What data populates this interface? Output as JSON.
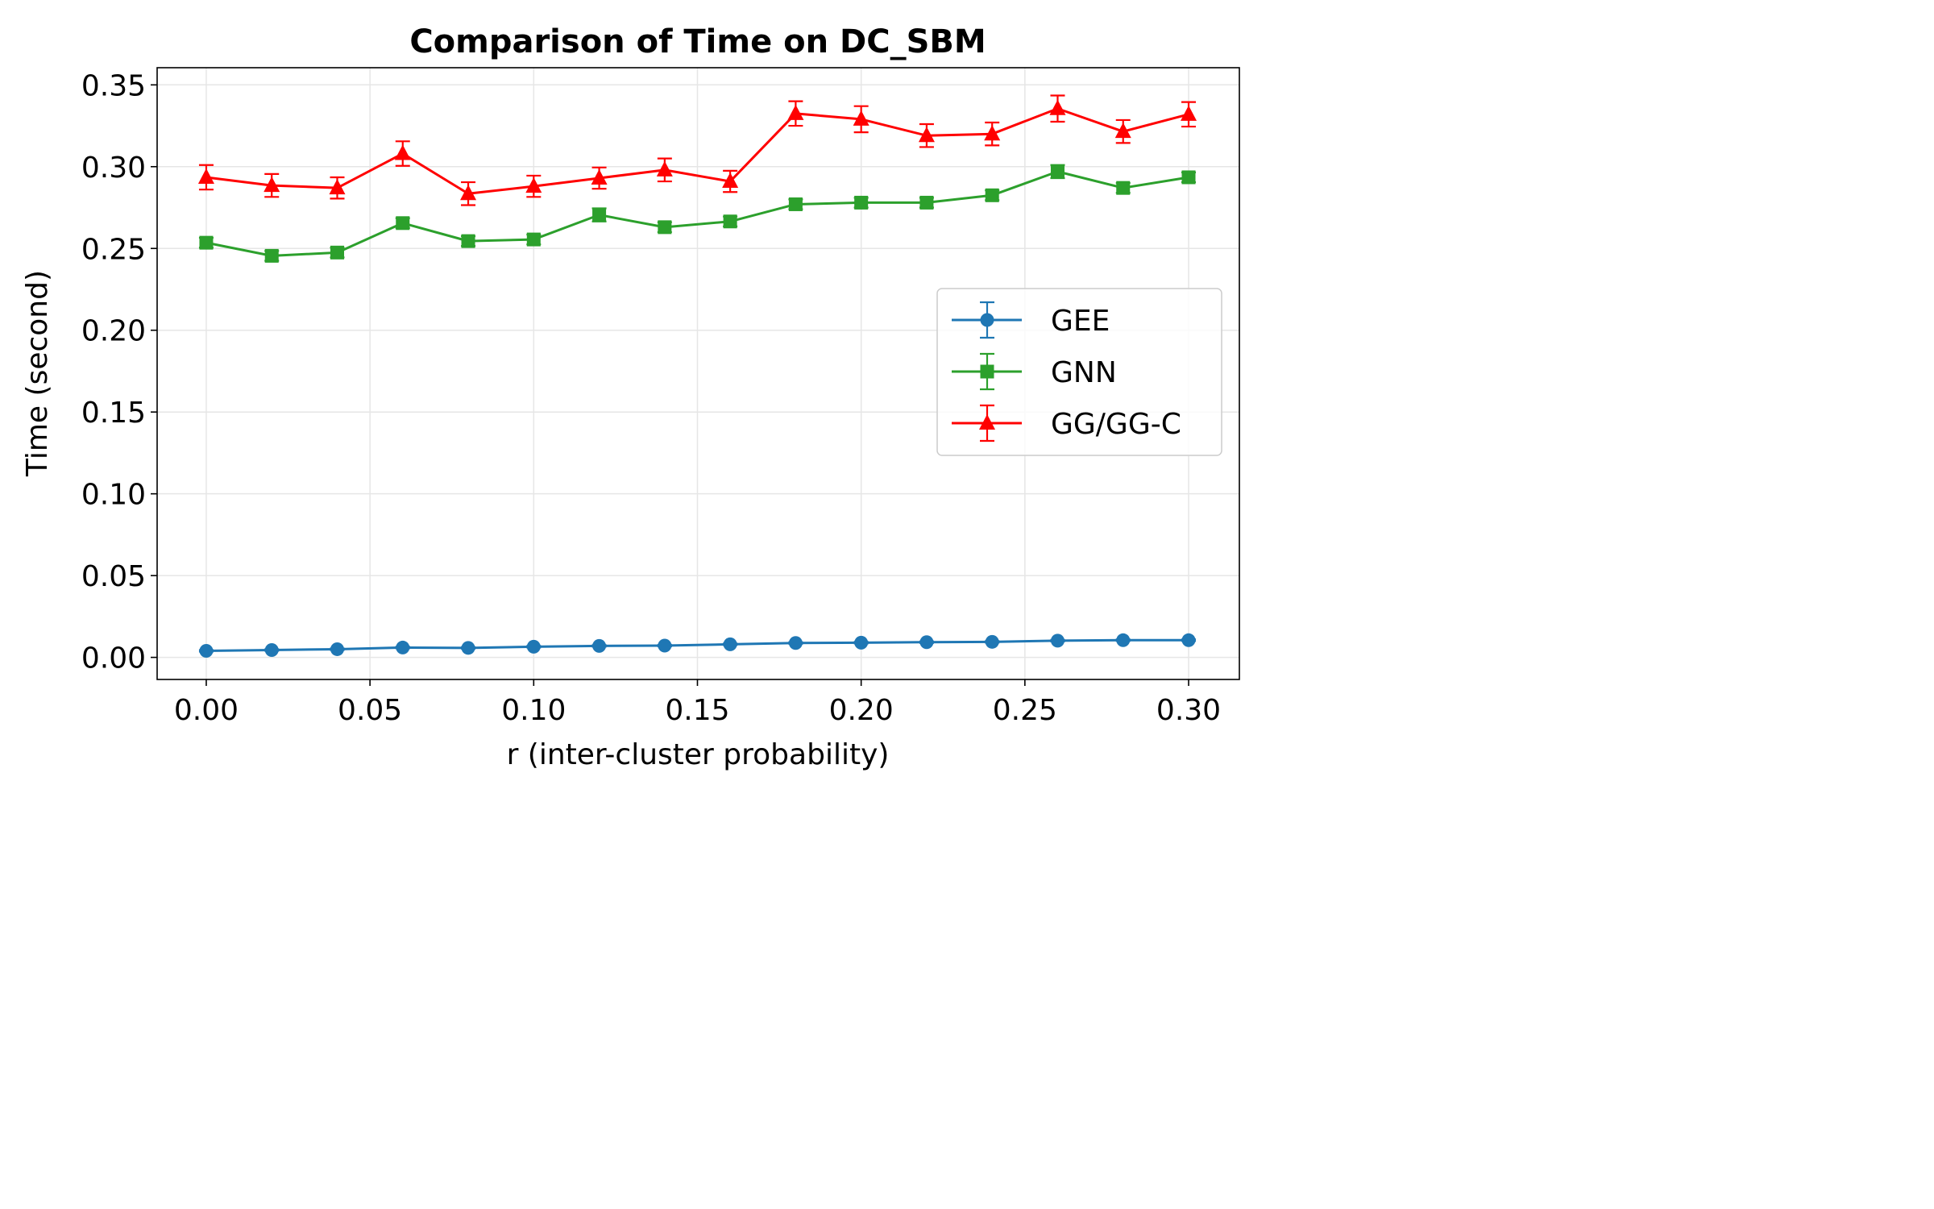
{
  "chart_data": {
    "type": "line",
    "title": "Comparison of Time on DC_SBM",
    "xlabel": "r (inter-cluster probability)",
    "ylabel": "Time (second)",
    "xlim": [
      -0.015,
      0.3155
    ],
    "ylim": [
      -0.0135,
      0.3605
    ],
    "x_ticks": [
      "0.00",
      "0.05",
      "0.10",
      "0.15",
      "0.20",
      "0.25",
      "0.30"
    ],
    "y_ticks": [
      "0.00",
      "0.05",
      "0.10",
      "0.15",
      "0.20",
      "0.25",
      "0.30",
      "0.35"
    ],
    "grid": true,
    "legend_position": "center-right",
    "x": [
      0.0,
      0.02,
      0.04,
      0.06,
      0.08,
      0.1,
      0.12,
      0.14,
      0.16,
      0.18,
      0.2,
      0.22,
      0.24,
      0.26,
      0.28,
      0.3
    ],
    "series": [
      {
        "name": "GEE",
        "color": "#1f77b4",
        "marker": "circle",
        "values": [
          0.004,
          0.0045,
          0.005,
          0.006,
          0.0058,
          0.0065,
          0.007,
          0.0072,
          0.008,
          0.0088,
          0.009,
          0.0093,
          0.0095,
          0.0102,
          0.0105,
          0.0105
        ],
        "errors": [
          0.0005,
          0.0005,
          0.0005,
          0.0005,
          0.0005,
          0.0005,
          0.0005,
          0.0005,
          0.0005,
          0.0005,
          0.0005,
          0.0005,
          0.0005,
          0.0005,
          0.0005,
          0.0005
        ]
      },
      {
        "name": "GNN",
        "color": "#2ca02c",
        "marker": "square",
        "values": [
          0.2535,
          0.2455,
          0.2475,
          0.2655,
          0.2545,
          0.2555,
          0.2705,
          0.263,
          0.2665,
          0.277,
          0.278,
          0.278,
          0.2825,
          0.297,
          0.287,
          0.2935
        ],
        "errors": [
          0.003,
          0.003,
          0.003,
          0.003,
          0.003,
          0.003,
          0.004,
          0.003,
          0.003,
          0.003,
          0.003,
          0.003,
          0.003,
          0.004,
          0.003,
          0.003
        ]
      },
      {
        "name": "GG/GG-C",
        "color": "#ff0000",
        "marker": "triangle",
        "values": [
          0.2935,
          0.2885,
          0.287,
          0.308,
          0.2835,
          0.288,
          0.293,
          0.298,
          0.291,
          0.3325,
          0.329,
          0.319,
          0.32,
          0.3355,
          0.3215,
          0.332
        ],
        "errors": [
          0.0075,
          0.007,
          0.0065,
          0.0075,
          0.007,
          0.0065,
          0.0065,
          0.007,
          0.0065,
          0.0075,
          0.008,
          0.007,
          0.007,
          0.008,
          0.007,
          0.0075
        ]
      }
    ]
  }
}
